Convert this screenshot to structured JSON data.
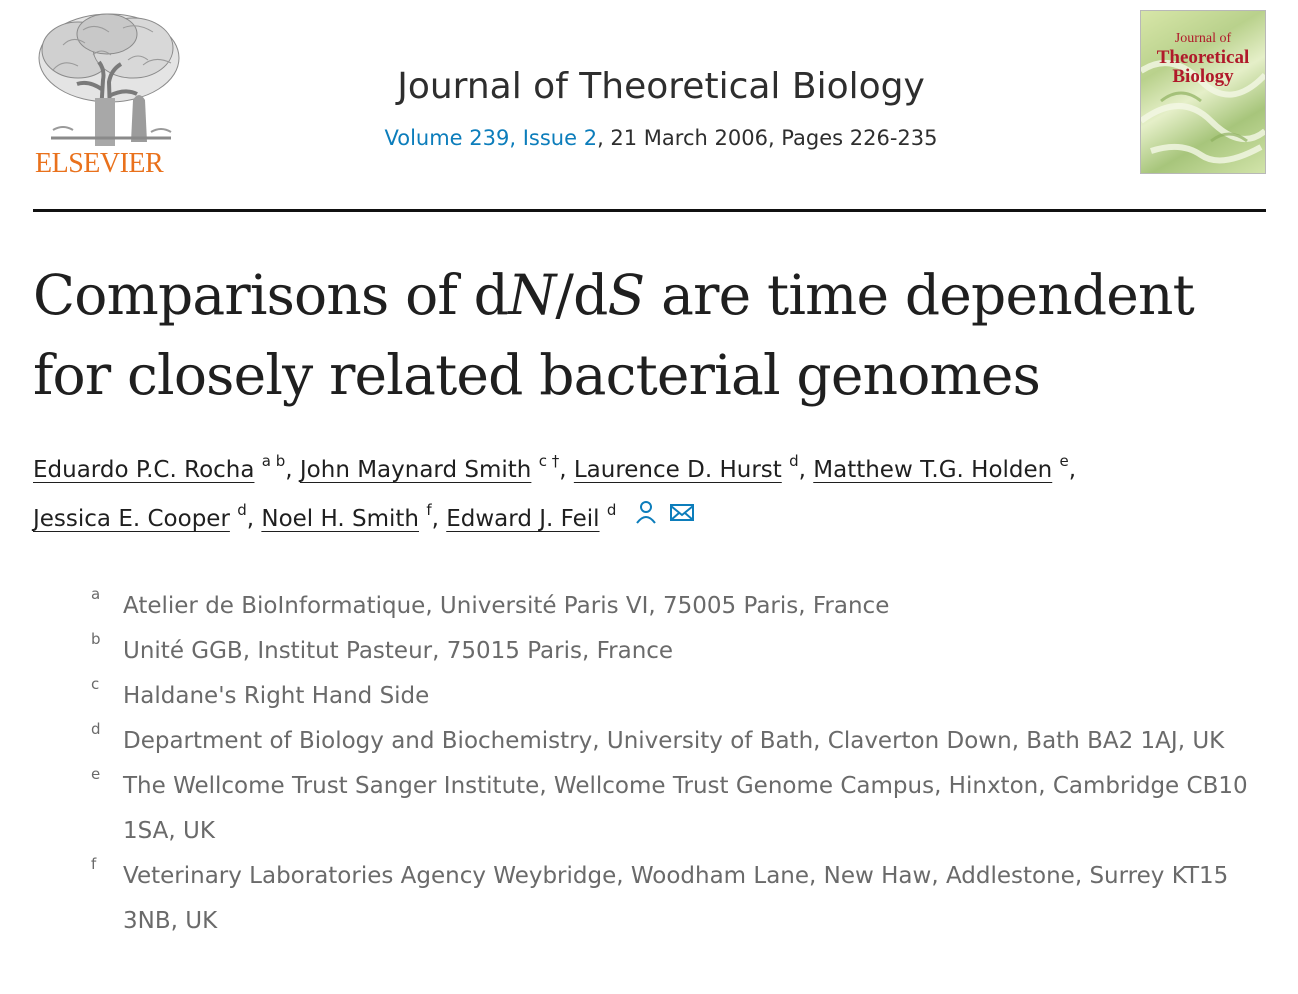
{
  "header": {
    "publisher": "ELSEVIER",
    "journal_title": "Journal of Theoretical Biology",
    "issue_link": "Volume 239, Issue 2",
    "issue_rest": ", 21 March 2006, Pages 226-235",
    "cover": {
      "line1": "Journal of",
      "line2": "Theoretical",
      "line3": "Biology"
    }
  },
  "article": {
    "title_line1_a": "Comparisons of d",
    "title_line1_n": "N",
    "title_line1_b": "/d",
    "title_line1_s": "S",
    "title_line1_c": " are time dependent",
    "title_line2": "for closely related bacterial genomes"
  },
  "authors": [
    {
      "name": "Eduardo P.C. Rocha",
      "sup": "a b"
    },
    {
      "name": "John Maynard Smith",
      "sup": "c †"
    },
    {
      "name": "Laurence D. Hurst",
      "sup": "d"
    },
    {
      "name": "Matthew T.G. Holden",
      "sup": "e"
    },
    {
      "name": "Jessica E. Cooper",
      "sup": "d"
    },
    {
      "name": "Noel H. Smith",
      "sup": "f"
    },
    {
      "name": "Edward J. Feil",
      "sup": "d"
    }
  ],
  "affiliations": [
    {
      "label": "a",
      "text": "Atelier de BioInformatique, Université Paris VI, 75005 Paris, France"
    },
    {
      "label": "b",
      "text": "Unité GGB, Institut Pasteur, 75015 Paris, France"
    },
    {
      "label": "c",
      "text": "Haldane's Right Hand Side"
    },
    {
      "label": "d",
      "text": "Department of Biology and Biochemistry, University of Bath, Claverton Down, Bath BA2 1AJ, UK"
    },
    {
      "label": "e",
      "text": "The Wellcome Trust Sanger Institute, Wellcome Trust Genome Campus, Hinxton, Cambridge CB10 1SA, UK"
    },
    {
      "label": "f",
      "text": "Veterinary Laboratories Agency Weybridge, Woodham Lane, New Haw, Addlestone, Surrey KT15 3NB, UK"
    }
  ],
  "icons": {
    "person": "person-icon",
    "email": "email-icon",
    "logo": "elsevier-tree-logo"
  },
  "colors": {
    "publisher_orange": "#e9711c",
    "link_blue": "#0c7dbb",
    "text": "#1f1f1f",
    "muted": "#6a6a6a",
    "cover_title_red": "#b0192a"
  }
}
